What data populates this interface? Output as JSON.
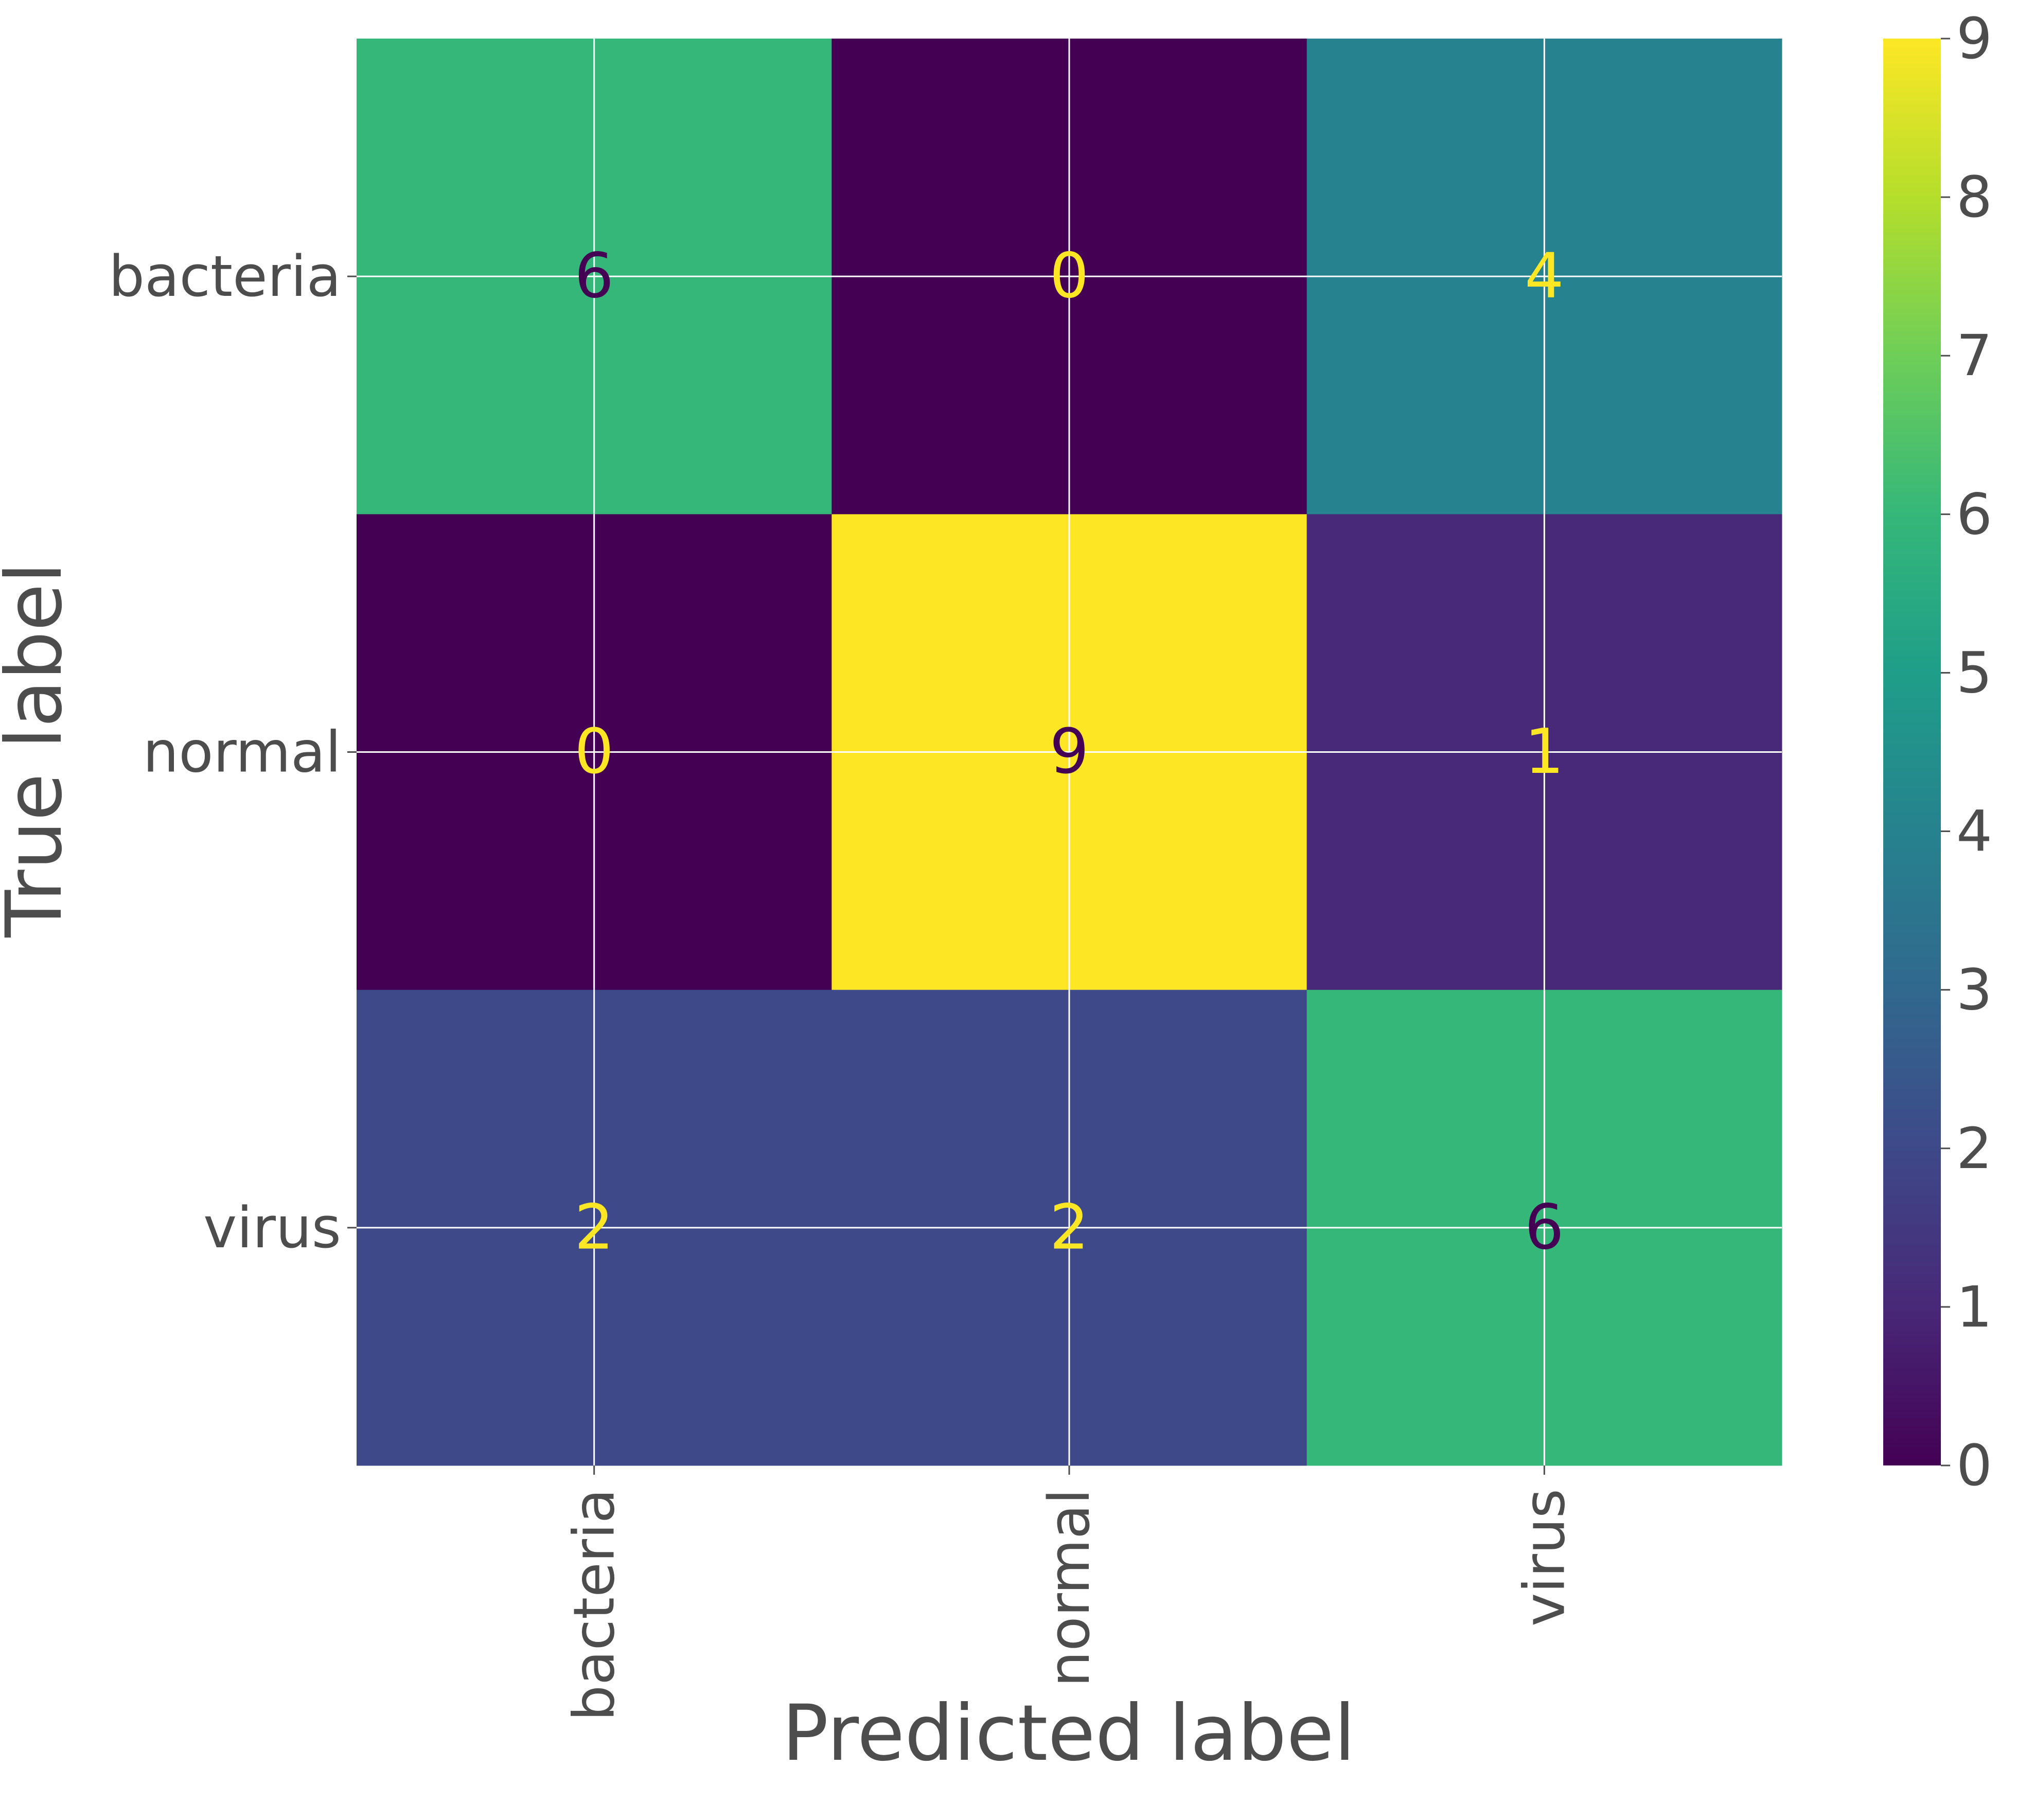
{
  "chart_data": {
    "type": "heatmap",
    "xlabel": "Predicted label",
    "ylabel": "True label",
    "x_categories": [
      "bacteria",
      "normal",
      "virus"
    ],
    "y_categories": [
      "bacteria",
      "normal",
      "virus"
    ],
    "values": [
      [
        6,
        0,
        4
      ],
      [
        0,
        9,
        1
      ],
      [
        2,
        2,
        6
      ]
    ],
    "colorbar": {
      "min": 0,
      "max": 9,
      "ticks": [
        "0",
        "1",
        "2",
        "3",
        "4",
        "5",
        "6",
        "7",
        "8",
        "9"
      ],
      "colormap": "viridis"
    },
    "grid": true
  }
}
